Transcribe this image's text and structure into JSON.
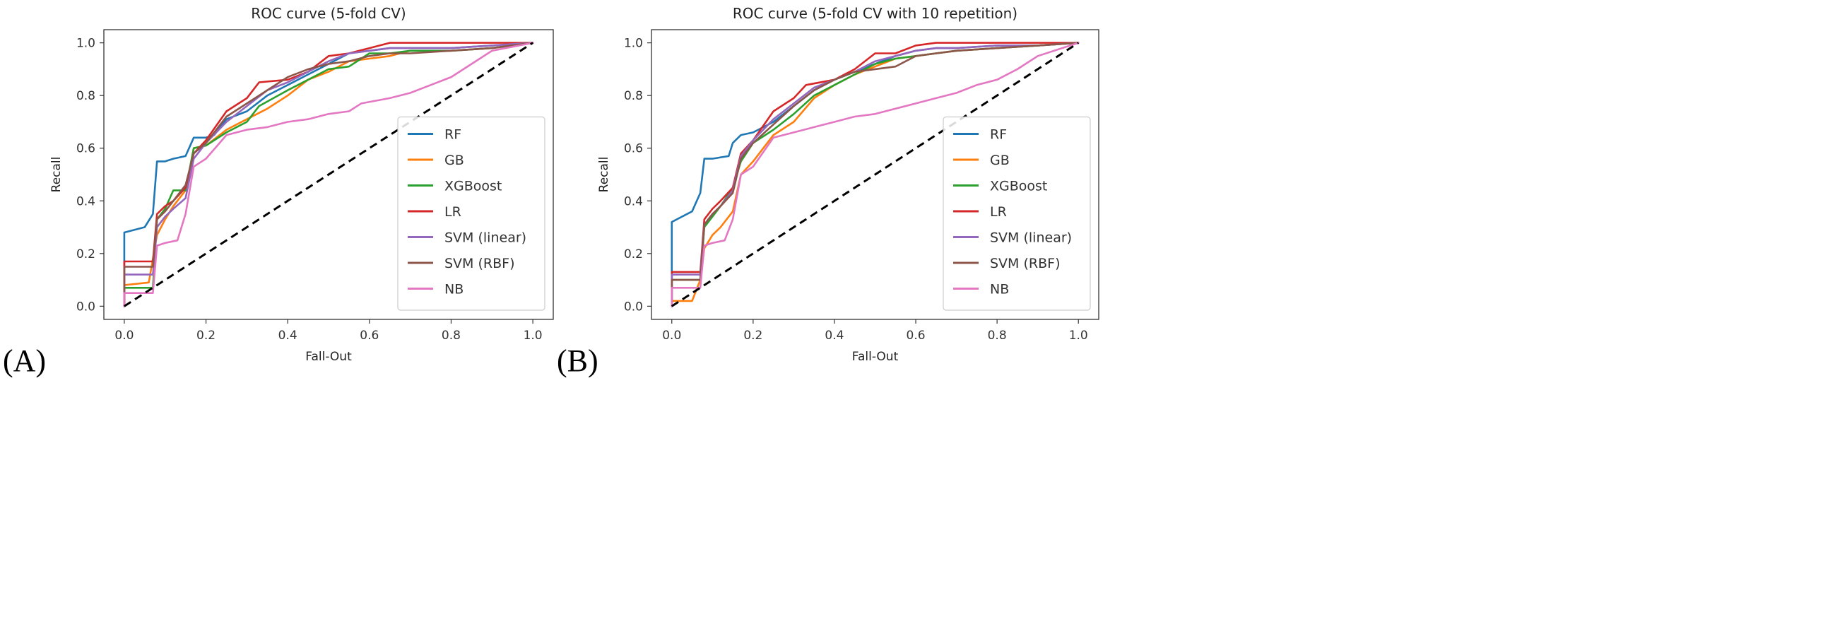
{
  "chart_data": [
    {
      "type": "line",
      "panel_label": "(A)",
      "title": "ROC curve (5-fold CV)",
      "xlabel": "Fall-Out",
      "ylabel": "Recall",
      "xlim": [
        -0.05,
        1.05
      ],
      "ylim": [
        -0.05,
        1.05
      ],
      "xticks": [
        0.0,
        0.2,
        0.4,
        0.6,
        0.8,
        1.0
      ],
      "yticks": [
        0.0,
        0.2,
        0.4,
        0.6,
        0.8,
        1.0
      ],
      "tick_labels": [
        "0.0",
        "0.2",
        "0.4",
        "0.6",
        "0.8",
        "1.0"
      ],
      "grid": false,
      "legend_position": "lower-right",
      "diagonal": {
        "x": [
          0,
          1
        ],
        "y": [
          0,
          1
        ],
        "color": "#000000",
        "style": "dashed"
      },
      "series": [
        {
          "name": "RF",
          "color": "#1f77b4",
          "x": [
            0,
            0,
            0.05,
            0.07,
            0.08,
            0.1,
            0.12,
            0.15,
            0.17,
            0.2,
            0.22,
            0.25,
            0.3,
            0.35,
            0.4,
            0.45,
            0.5,
            0.55,
            0.6,
            0.65,
            0.7,
            0.8,
            0.9,
            1.0
          ],
          "y": [
            0,
            0.28,
            0.3,
            0.35,
            0.55,
            0.55,
            0.56,
            0.57,
            0.64,
            0.64,
            0.65,
            0.71,
            0.74,
            0.8,
            0.84,
            0.88,
            0.92,
            0.96,
            0.97,
            0.98,
            0.98,
            0.98,
            0.99,
            1.0
          ]
        },
        {
          "name": "GB",
          "color": "#ff7f0e",
          "x": [
            0,
            0,
            0.06,
            0.08,
            0.1,
            0.12,
            0.15,
            0.17,
            0.2,
            0.25,
            0.3,
            0.35,
            0.4,
            0.45,
            0.5,
            0.55,
            0.6,
            0.65,
            0.7,
            0.8,
            0.9,
            1.0
          ],
          "y": [
            0,
            0.08,
            0.09,
            0.27,
            0.33,
            0.38,
            0.44,
            0.6,
            0.61,
            0.67,
            0.71,
            0.75,
            0.8,
            0.86,
            0.89,
            0.93,
            0.94,
            0.95,
            0.97,
            0.97,
            0.98,
            1.0
          ]
        },
        {
          "name": "XGBoost",
          "color": "#2ca02c",
          "x": [
            0,
            0,
            0.07,
            0.08,
            0.1,
            0.12,
            0.15,
            0.17,
            0.2,
            0.25,
            0.3,
            0.33,
            0.4,
            0.45,
            0.5,
            0.55,
            0.6,
            0.65,
            0.7,
            0.8,
            0.9,
            1.0
          ],
          "y": [
            0,
            0.07,
            0.07,
            0.33,
            0.37,
            0.44,
            0.44,
            0.6,
            0.61,
            0.66,
            0.7,
            0.76,
            0.82,
            0.86,
            0.9,
            0.91,
            0.96,
            0.96,
            0.97,
            0.97,
            0.98,
            1.0
          ]
        },
        {
          "name": "LR",
          "color": "#d62728",
          "x": [
            0,
            0,
            0.07,
            0.08,
            0.1,
            0.12,
            0.15,
            0.17,
            0.2,
            0.25,
            0.3,
            0.33,
            0.4,
            0.45,
            0.5,
            0.55,
            0.6,
            0.65,
            0.7,
            0.8,
            0.9,
            1.0
          ],
          "y": [
            0,
            0.17,
            0.17,
            0.35,
            0.38,
            0.4,
            0.45,
            0.58,
            0.63,
            0.74,
            0.79,
            0.85,
            0.86,
            0.89,
            0.95,
            0.96,
            0.98,
            1.0,
            1.0,
            1.0,
            1.0,
            1.0
          ]
        },
        {
          "name": "SVM (linear)",
          "color": "#9467bd",
          "x": [
            0,
            0,
            0.07,
            0.08,
            0.1,
            0.12,
            0.15,
            0.17,
            0.2,
            0.25,
            0.3,
            0.35,
            0.4,
            0.45,
            0.5,
            0.55,
            0.6,
            0.65,
            0.7,
            0.8,
            0.9,
            1.0
          ],
          "y": [
            0,
            0.12,
            0.12,
            0.3,
            0.34,
            0.37,
            0.41,
            0.56,
            0.62,
            0.7,
            0.76,
            0.82,
            0.85,
            0.89,
            0.93,
            0.96,
            0.97,
            0.98,
            0.98,
            0.98,
            0.99,
            1.0
          ]
        },
        {
          "name": "SVM (RBF)",
          "color": "#8c564b",
          "x": [
            0,
            0,
            0.07,
            0.08,
            0.1,
            0.12,
            0.15,
            0.17,
            0.2,
            0.25,
            0.3,
            0.35,
            0.4,
            0.45,
            0.5,
            0.55,
            0.6,
            0.65,
            0.7,
            0.8,
            0.9,
            1.0
          ],
          "y": [
            0,
            0.15,
            0.15,
            0.33,
            0.36,
            0.4,
            0.46,
            0.58,
            0.62,
            0.72,
            0.77,
            0.82,
            0.87,
            0.9,
            0.92,
            0.93,
            0.95,
            0.96,
            0.96,
            0.97,
            0.98,
            1.0
          ]
        },
        {
          "name": "NB",
          "color": "#e377c2",
          "x": [
            0,
            0,
            0.07,
            0.08,
            0.1,
            0.13,
            0.15,
            0.17,
            0.2,
            0.25,
            0.3,
            0.35,
            0.4,
            0.45,
            0.5,
            0.55,
            0.58,
            0.65,
            0.7,
            0.75,
            0.8,
            0.85,
            0.9,
            1.0
          ],
          "y": [
            0,
            0.05,
            0.05,
            0.23,
            0.24,
            0.25,
            0.35,
            0.53,
            0.56,
            0.65,
            0.67,
            0.68,
            0.7,
            0.71,
            0.73,
            0.74,
            0.77,
            0.79,
            0.81,
            0.84,
            0.87,
            0.92,
            0.97,
            1.0
          ]
        }
      ]
    },
    {
      "type": "line",
      "panel_label": "(B)",
      "title": "ROC curve (5-fold CV with 10 repetition)",
      "xlabel": "Fall-Out",
      "ylabel": "Recall",
      "xlim": [
        -0.05,
        1.05
      ],
      "ylim": [
        -0.05,
        1.05
      ],
      "xticks": [
        0.0,
        0.2,
        0.4,
        0.6,
        0.8,
        1.0
      ],
      "yticks": [
        0.0,
        0.2,
        0.4,
        0.6,
        0.8,
        1.0
      ],
      "tick_labels": [
        "0.0",
        "0.2",
        "0.4",
        "0.6",
        "0.8",
        "1.0"
      ],
      "grid": false,
      "legend_position": "lower-right",
      "diagonal": {
        "x": [
          0,
          1
        ],
        "y": [
          0,
          1
        ],
        "color": "#000000",
        "style": "dashed"
      },
      "series": [
        {
          "name": "RF",
          "color": "#1f77b4",
          "x": [
            0,
            0,
            0.05,
            0.07,
            0.08,
            0.1,
            0.14,
            0.15,
            0.17,
            0.2,
            0.25,
            0.3,
            0.35,
            0.4,
            0.45,
            0.5,
            0.55,
            0.6,
            0.65,
            0.7,
            0.8,
            0.9,
            1.0
          ],
          "y": [
            0,
            0.32,
            0.36,
            0.43,
            0.56,
            0.56,
            0.57,
            0.62,
            0.65,
            0.66,
            0.7,
            0.76,
            0.82,
            0.86,
            0.89,
            0.92,
            0.95,
            0.97,
            0.98,
            0.98,
            0.99,
            0.99,
            1.0
          ]
        },
        {
          "name": "GB",
          "color": "#ff7f0e",
          "x": [
            0,
            0,
            0.05,
            0.07,
            0.08,
            0.1,
            0.12,
            0.15,
            0.17,
            0.2,
            0.25,
            0.3,
            0.35,
            0.4,
            0.45,
            0.5,
            0.55,
            0.6,
            0.65,
            0.7,
            0.8,
            0.9,
            1.0
          ],
          "y": [
            0,
            0.02,
            0.02,
            0.1,
            0.22,
            0.27,
            0.3,
            0.36,
            0.5,
            0.55,
            0.65,
            0.7,
            0.79,
            0.84,
            0.88,
            0.91,
            0.94,
            0.95,
            0.96,
            0.97,
            0.98,
            0.99,
            1.0
          ]
        },
        {
          "name": "XGBoost",
          "color": "#2ca02c",
          "x": [
            0,
            0,
            0.07,
            0.08,
            0.1,
            0.12,
            0.15,
            0.17,
            0.2,
            0.25,
            0.3,
            0.35,
            0.4,
            0.45,
            0.5,
            0.55,
            0.6,
            0.65,
            0.7,
            0.8,
            0.9,
            1.0
          ],
          "y": [
            0,
            0.1,
            0.1,
            0.3,
            0.34,
            0.38,
            0.45,
            0.55,
            0.62,
            0.67,
            0.73,
            0.8,
            0.84,
            0.88,
            0.92,
            0.94,
            0.95,
            0.96,
            0.97,
            0.98,
            0.99,
            1.0
          ]
        },
        {
          "name": "LR",
          "color": "#d62728",
          "x": [
            0,
            0,
            0.07,
            0.08,
            0.1,
            0.12,
            0.15,
            0.17,
            0.2,
            0.25,
            0.3,
            0.33,
            0.4,
            0.45,
            0.5,
            0.55,
            0.6,
            0.65,
            0.7,
            0.8,
            0.9,
            1.0
          ],
          "y": [
            0,
            0.13,
            0.13,
            0.33,
            0.37,
            0.4,
            0.45,
            0.58,
            0.63,
            0.74,
            0.79,
            0.84,
            0.86,
            0.9,
            0.96,
            0.96,
            0.99,
            1.0,
            1.0,
            1.0,
            1.0,
            1.0
          ]
        },
        {
          "name": "SVM (linear)",
          "color": "#9467bd",
          "x": [
            0,
            0,
            0.07,
            0.08,
            0.1,
            0.12,
            0.15,
            0.17,
            0.2,
            0.25,
            0.3,
            0.35,
            0.4,
            0.45,
            0.5,
            0.55,
            0.6,
            0.65,
            0.7,
            0.8,
            0.9,
            1.0
          ],
          "y": [
            0,
            0.12,
            0.12,
            0.31,
            0.35,
            0.38,
            0.44,
            0.57,
            0.63,
            0.71,
            0.77,
            0.83,
            0.86,
            0.89,
            0.93,
            0.95,
            0.97,
            0.98,
            0.98,
            0.99,
            0.99,
            1.0
          ]
        },
        {
          "name": "SVM (RBF)",
          "color": "#8c564b",
          "x": [
            0,
            0,
            0.07,
            0.08,
            0.1,
            0.12,
            0.15,
            0.17,
            0.2,
            0.25,
            0.3,
            0.35,
            0.4,
            0.45,
            0.5,
            0.55,
            0.6,
            0.65,
            0.7,
            0.8,
            0.9,
            1.0
          ],
          "y": [
            0,
            0.1,
            0.1,
            0.31,
            0.35,
            0.38,
            0.43,
            0.56,
            0.62,
            0.69,
            0.76,
            0.82,
            0.86,
            0.89,
            0.9,
            0.91,
            0.95,
            0.96,
            0.97,
            0.98,
            0.99,
            1.0
          ]
        },
        {
          "name": "NB",
          "color": "#e377c2",
          "x": [
            0,
            0,
            0.07,
            0.08,
            0.1,
            0.13,
            0.15,
            0.17,
            0.2,
            0.25,
            0.3,
            0.35,
            0.4,
            0.45,
            0.5,
            0.55,
            0.6,
            0.65,
            0.7,
            0.75,
            0.8,
            0.85,
            0.9,
            1.0
          ],
          "y": [
            0,
            0.07,
            0.07,
            0.23,
            0.24,
            0.25,
            0.33,
            0.5,
            0.53,
            0.64,
            0.66,
            0.68,
            0.7,
            0.72,
            0.73,
            0.75,
            0.77,
            0.79,
            0.81,
            0.84,
            0.86,
            0.9,
            0.95,
            1.0
          ]
        }
      ]
    }
  ]
}
